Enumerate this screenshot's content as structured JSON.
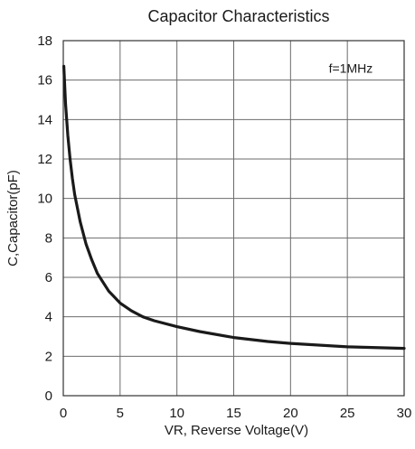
{
  "chart_data": {
    "type": "line",
    "title": "Capacitor Characteristics",
    "xlabel": "VR, Reverse Voltage(V)",
    "ylabel": "C,Capacitor(pF)",
    "annotation": "f=1MHz",
    "xlim": [
      0,
      30
    ],
    "ylim": [
      0,
      18
    ],
    "xticks": [
      0,
      5,
      10,
      15,
      20,
      25,
      30
    ],
    "yticks": [
      0,
      2,
      4,
      6,
      8,
      10,
      12,
      14,
      16,
      18
    ],
    "grid": true,
    "legend": "none",
    "series": [
      {
        "color": "#1a1a1a",
        "x": [
          0.05,
          0.2,
          0.4,
          0.6,
          0.8,
          1.0,
          1.5,
          2.0,
          2.5,
          3.0,
          4.0,
          5.0,
          6.0,
          7.0,
          8.0,
          10.0,
          12.0,
          15.0,
          18.0,
          20.0,
          25.0,
          30.0
        ],
        "y": [
          16.7,
          14.8,
          13.2,
          12.0,
          11.0,
          10.2,
          8.8,
          7.7,
          6.9,
          6.2,
          5.3,
          4.7,
          4.3,
          4.0,
          3.8,
          3.5,
          3.25,
          2.95,
          2.75,
          2.65,
          2.48,
          2.4
        ]
      }
    ]
  }
}
